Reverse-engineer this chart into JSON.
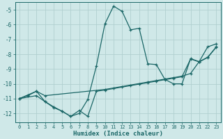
{
  "xlabel": "Humidex (Indice chaleur)",
  "bg_color": "#cfe8e8",
  "grid_color": "#b0d0d0",
  "line_color": "#1a6666",
  "xlim": [
    -0.5,
    23.5
  ],
  "ylim": [
    -12.6,
    -4.5
  ],
  "yticks": [
    -12,
    -11,
    -10,
    -9,
    -8,
    -7,
    -6,
    -5
  ],
  "xticks": [
    0,
    1,
    2,
    3,
    4,
    5,
    6,
    7,
    8,
    9,
    10,
    11,
    12,
    13,
    14,
    15,
    16,
    17,
    18,
    19,
    20,
    21,
    22,
    23
  ],
  "line1_x": [
    0,
    1,
    2,
    3,
    4,
    5,
    6,
    7,
    8,
    9,
    10,
    11,
    12,
    13,
    14,
    15,
    16,
    17,
    18,
    19,
    20,
    21,
    22,
    23
  ],
  "line1_y": [
    -11.0,
    -10.8,
    -10.5,
    -11.2,
    -11.6,
    -11.85,
    -12.2,
    -12.0,
    -11.05,
    -8.8,
    -5.95,
    -4.75,
    -5.1,
    -6.35,
    -6.25,
    -8.65,
    -8.7,
    -9.7,
    -10.0,
    -10.0,
    -8.3,
    -8.5,
    -7.5,
    -7.3
  ],
  "line2_x": [
    0,
    1,
    2,
    3,
    10,
    15,
    16,
    17,
    18,
    19,
    20,
    21,
    22,
    23
  ],
  "line2_y": [
    -11.0,
    -10.75,
    -10.5,
    -10.8,
    -10.38,
    -9.88,
    -9.78,
    -9.68,
    -9.58,
    -9.48,
    -9.3,
    -8.5,
    -8.2,
    -7.5
  ],
  "line3_x": [
    0,
    2,
    3,
    4,
    5,
    6,
    7,
    8,
    9,
    10,
    11,
    12,
    13,
    14,
    15,
    16,
    17,
    18,
    19,
    20,
    21,
    22,
    23
  ],
  "line3_y": [
    -11.0,
    -10.8,
    -11.2,
    -11.55,
    -11.85,
    -12.2,
    -11.8,
    -12.2,
    -10.5,
    -10.42,
    -10.32,
    -10.22,
    -10.12,
    -10.02,
    -9.92,
    -9.82,
    -9.72,
    -9.62,
    -9.52,
    -8.32,
    -8.52,
    -8.22,
    -7.52
  ]
}
